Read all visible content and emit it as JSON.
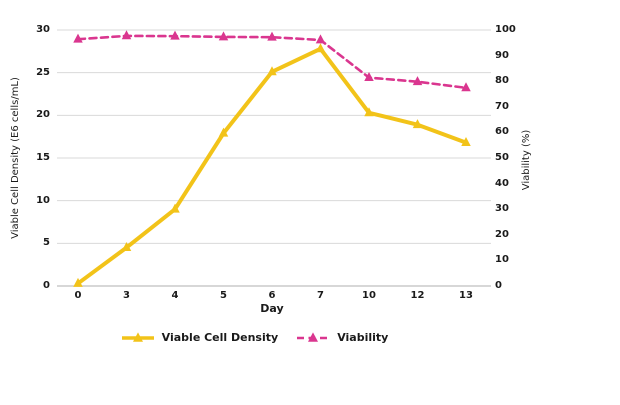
{
  "chart_data": {
    "type": "line",
    "title": "",
    "xlabel": "Day",
    "categories": [
      0,
      3,
      4,
      5,
      6,
      7,
      10,
      12,
      13
    ],
    "left_axis": {
      "label": "Viable Cell Density (E6 cells/mL)",
      "min": 0,
      "max": 30,
      "ticks": [
        0,
        5,
        10,
        15,
        20,
        25,
        30
      ]
    },
    "right_axis": {
      "label": "Viability (%)",
      "min": 0,
      "max": 100,
      "ticks": [
        0,
        10,
        20,
        30,
        40,
        50,
        60,
        70,
        80,
        90,
        100
      ]
    },
    "series": [
      {
        "name": "Viable Cell Density",
        "axis": "left",
        "color": "#F2C319",
        "line_style": "solid",
        "marker": "triangle",
        "values": [
          0.3,
          4.5,
          9.0,
          17.9,
          25.1,
          27.8,
          20.3,
          18.9,
          16.8
        ]
      },
      {
        "name": "Viability",
        "axis": "right",
        "color": "#DA368F",
        "line_style": "dashed",
        "marker": "triangle",
        "values": [
          96.4,
          97.7,
          97.6,
          97.3,
          97.2,
          96.1,
          81.4,
          79.8,
          77.4
        ]
      }
    ],
    "legend_position": "bottom",
    "grid": "horizontal",
    "colors": {
      "gridline": "#D9D9D9",
      "axis_line": "#BFBFBF",
      "text": "#1A1A1A",
      "background": "#FFFFFF"
    }
  }
}
